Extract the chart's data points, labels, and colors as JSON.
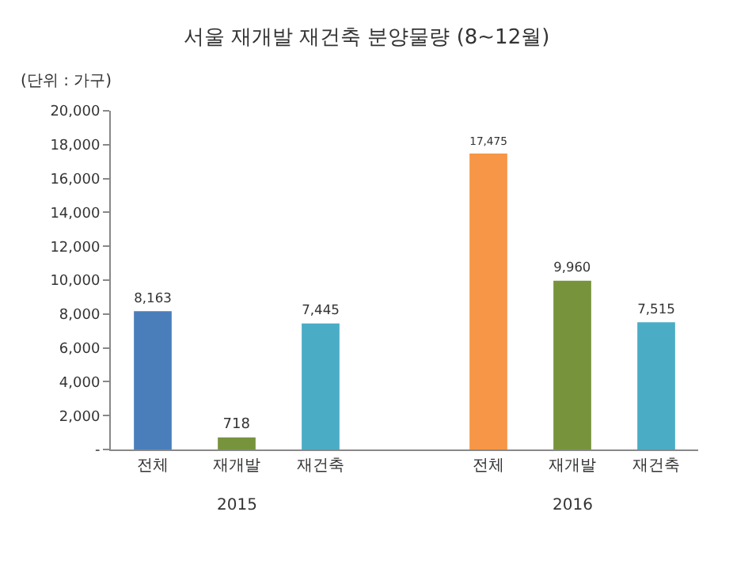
{
  "chart_data": {
    "type": "bar",
    "title": "서울 재개발 재건축 분양물량 (8~12월)",
    "ylabel": "(단위 : 가구)",
    "categories": [
      "전체",
      "재개발",
      "재건축",
      null,
      "전체",
      "재개발",
      "재건축"
    ],
    "values": [
      8163,
      718,
      7445,
      null,
      17475,
      9960,
      7515
    ],
    "colors": [
      "#4a7ebb",
      "#77933c",
      "#4bacc6",
      "#ffffff",
      "#f79646",
      "#77933c",
      "#4bacc6"
    ],
    "value_labels": [
      "8,163",
      "718",
      "7,445",
      null,
      "17,475",
      "9,960",
      "7,515"
    ],
    "annotations": [
      "2015",
      "2016"
    ],
    "ylim": [
      0,
      20000
    ],
    "yticks": [
      {
        "value": 0,
        "label": "-"
      },
      {
        "value": 2000,
        "label": "2,000"
      },
      {
        "value": 4000,
        "label": "4,000"
      },
      {
        "value": 6000,
        "label": "6,000"
      },
      {
        "value": 8000,
        "label": "8,000"
      },
      {
        "value": 10000,
        "label": "10,000"
      },
      {
        "value": 12000,
        "label": "12,000"
      },
      {
        "value": 14000,
        "label": "14,000"
      },
      {
        "value": 16000,
        "label": "16,000"
      },
      {
        "value": 18000,
        "label": "18,000"
      },
      {
        "value": 20000,
        "label": "20,000"
      }
    ],
    "grid": false
  }
}
